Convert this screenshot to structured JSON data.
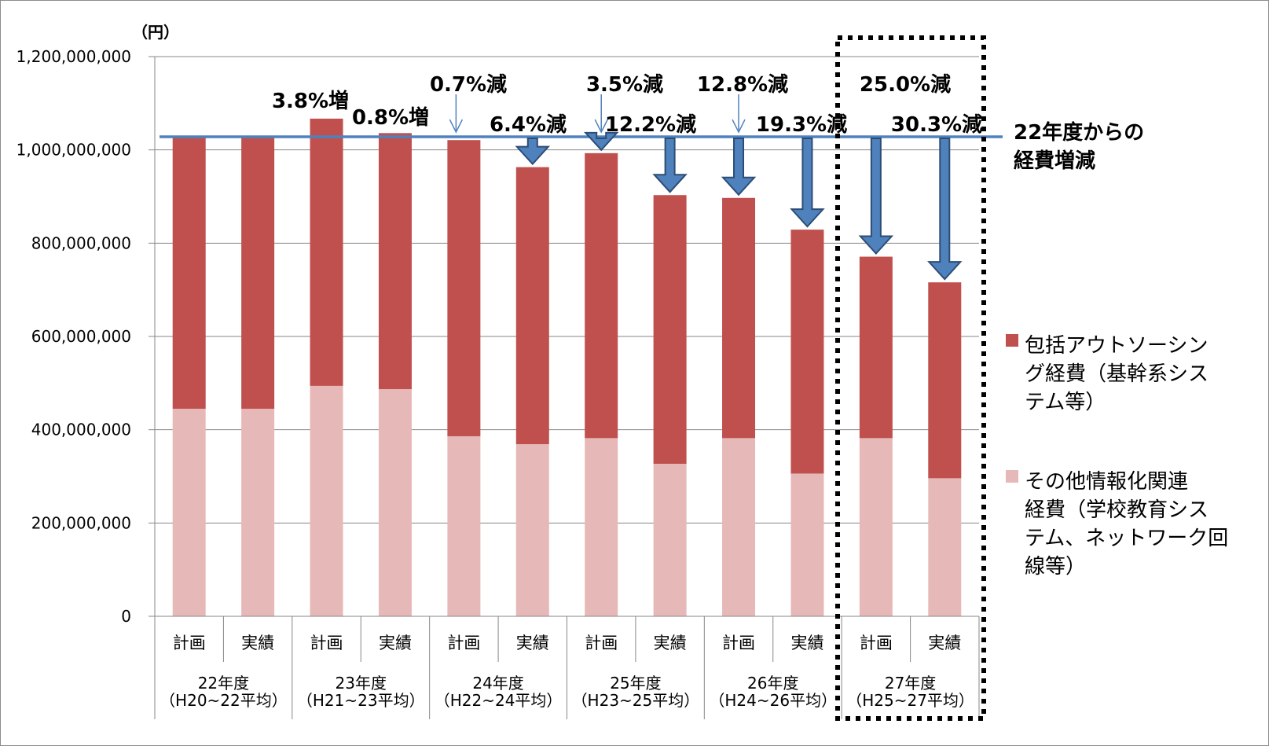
{
  "chart_data": {
    "type": "bar",
    "stacked": true,
    "unit_label": "（円）",
    "ylim": [
      0,
      1200000000
    ],
    "yticks": [
      "0",
      "200,000,000",
      "400,000,000",
      "600,000,000",
      "800,000,000",
      "1,000,000,000",
      "1,200,000,000"
    ],
    "ytick_values": [
      0,
      200000000,
      400000000,
      600000000,
      800000000,
      1000000000,
      1200000000
    ],
    "grid": true,
    "categories": [
      "計画",
      "実績",
      "計画",
      "実績",
      "計画",
      "実績",
      "計画",
      "実績",
      "計画",
      "実績",
      "計画",
      "実績"
    ],
    "groups": [
      {
        "label": "22年度",
        "sublabel": "（H20~22平均）"
      },
      {
        "label": "23年度",
        "sublabel": "（H21~23平均）"
      },
      {
        "label": "24年度",
        "sublabel": "（H22~24平均）"
      },
      {
        "label": "25年度",
        "sublabel": "（H23~25平均）"
      },
      {
        "label": "26年度",
        "sublabel": "（H24~26平均）"
      },
      {
        "label": "27年度",
        "sublabel": "（H25~27平均）"
      }
    ],
    "series": [
      {
        "name": "その他情報化関連経費（学校教育システム、ネットワーク回線等）",
        "color": "#e6b9b8",
        "values": [
          445000000,
          445000000,
          494000000,
          487000000,
          386000000,
          369000000,
          382000000,
          327000000,
          382000000,
          306000000,
          382000000,
          296000000
        ]
      },
      {
        "name": "包括アウトソーシング経費（基幹系システム等）",
        "color": "#c0504d",
        "values": [
          583000000,
          583000000,
          573000000,
          549000000,
          635000000,
          594000000,
          611000000,
          576000000,
          515000000,
          523000000,
          389000000,
          420000000
        ]
      }
    ],
    "reference_line": {
      "value": 1028000000,
      "label_line1": "22年度からの",
      "label_line2": "経費増減",
      "color": "#4f81bd"
    },
    "annotations": [
      "",
      "",
      "3.8%増",
      "0.8%増",
      "0.7%減",
      "6.4%減",
      "3.5%減",
      "12.2%減",
      "12.8%減",
      "19.3%減",
      "25.0%減",
      "30.3%減"
    ],
    "legend": [
      {
        "lines": [
          "包括アウトソーシン",
          "グ経費（基幹系シス",
          "テム等）"
        ],
        "color": "#c0504d"
      },
      {
        "lines": [
          "その他情報化関連",
          "経費（学校教育シス",
          "テム、ネットワーク回",
          "線等）"
        ],
        "color": "#e6b9b8"
      }
    ],
    "legend_position": "right",
    "highlight_group": "27年度"
  }
}
